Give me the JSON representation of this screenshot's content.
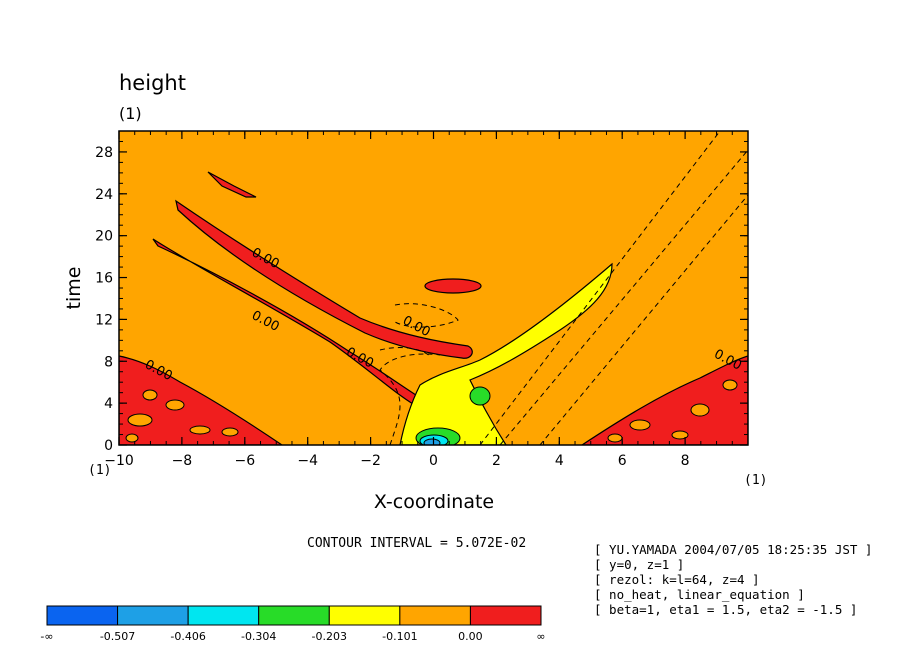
{
  "chart_data": {
    "type": "heatmap",
    "title": "height",
    "title_unit": "(1)",
    "xlabel": "X-coordinate",
    "ylabel": "time",
    "x_unit": "(1)",
    "y_unit": "(1)",
    "xlim": [
      -10,
      10
    ],
    "ylim": [
      0,
      30
    ],
    "x_ticks": [
      -10,
      -8,
      -6,
      -4,
      -2,
      0,
      2,
      4,
      6,
      8
    ],
    "y_ticks": [
      0,
      4,
      8,
      12,
      16,
      20,
      24,
      28
    ],
    "contour_label_value": "0.00",
    "contour_labels": [
      {
        "text": "0.00",
        "x": -5.4,
        "y": 17.5
      },
      {
        "text": "0.00",
        "x": -5.4,
        "y": 11.5
      },
      {
        "text": "0.00",
        "x": -2.4,
        "y": 8.0
      },
      {
        "text": "0.00",
        "x": -0.6,
        "y": 11.0
      },
      {
        "text": "0.00",
        "x": -8.8,
        "y": 6.8
      },
      {
        "text": "0.00",
        "x": 9.3,
        "y": 7.8
      }
    ],
    "contour_interval_label": "CONTOUR INTERVAL = 5.072E-02",
    "colorbar": {
      "colors": [
        "#0a64f0",
        "#1ea0e6",
        "#00e6f0",
        "#28dc28",
        "#ffff00",
        "#ffa500",
        "#f01e1e"
      ],
      "labels": [
        "-∞",
        "-0.507",
        "-0.406",
        "-0.304",
        "-0.203",
        "-0.101",
        "0.00",
        "∞"
      ]
    },
    "background_color": "#ffa500"
  },
  "info": [
    "[ YU.YAMADA 2004/07/05 18:25:35 JST ]",
    "[ y=0, z=1 ]",
    "[ rezol: k=l=64, z=4 ]",
    "[ no_heat, linear_equation ]",
    "[ beta=1, eta1 = 1.5, eta2 = -1.5 ]"
  ]
}
